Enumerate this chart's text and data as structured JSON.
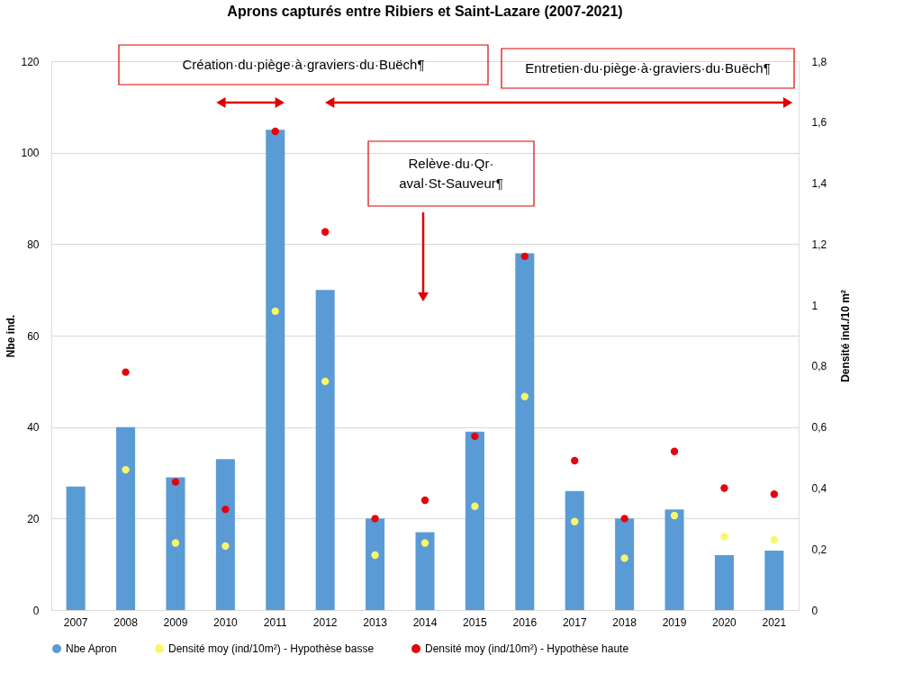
{
  "chart_data": {
    "type": "bar",
    "title": "Aprons capturés entre Ribiers et Saint-Lazare (2007-2021)",
    "ylabel": "Nbe ind.",
    "y2label": "Densité ind./10 m²",
    "categories": [
      "2007",
      "2008",
      "2009",
      "2010",
      "2011",
      "2012",
      "2013",
      "2014",
      "2015",
      "2016",
      "2017",
      "2018",
      "2019",
      "2020",
      "2021"
    ],
    "series": [
      {
        "name": "Nbe Apron",
        "color": "#5b9bd5",
        "values": [
          27,
          40,
          29,
          33,
          105,
          70,
          20,
          17,
          39,
          78,
          26,
          20,
          22,
          12,
          13
        ]
      },
      {
        "name": "Densité moy (ind/10m²) - Hypothèse basse",
        "color": "#f7f76a",
        "type": "scatter",
        "axis": "y2",
        "values": [
          null,
          0.46,
          0.22,
          0.21,
          0.98,
          0.75,
          0.18,
          0.22,
          0.34,
          0.7,
          0.29,
          0.17,
          0.31,
          0.24,
          0.23
        ]
      },
      {
        "name": "Densité moy (ind/10m²) - Hypothèse haute",
        "color": "#e8000e",
        "type": "scatter",
        "axis": "y2",
        "values": [
          null,
          0.78,
          0.42,
          0.33,
          1.57,
          1.24,
          0.3,
          0.36,
          0.57,
          1.16,
          0.49,
          0.3,
          0.52,
          0.4,
          0.38
        ]
      }
    ],
    "ylim": [
      0,
      120
    ],
    "yticks": [
      0,
      20,
      40,
      60,
      80,
      100,
      120
    ],
    "y2lim": [
      0,
      1.8
    ],
    "y2ticks": [
      0,
      {
        "value": 0.2,
        "label": "0,2"
      },
      {
        "value": 0.4,
        "label": "0,4"
      },
      {
        "value": 0.6,
        "label": "0,6"
      },
      {
        "value": 0.8,
        "label": "0,8"
      },
      1,
      {
        "value": 1.2,
        "label": "1,2"
      },
      {
        "value": 1.4,
        "label": "1,4"
      },
      {
        "value": 1.6,
        "label": "1,6"
      },
      {
        "value": 1.8,
        "label": "1,8"
      }
    ],
    "grid": "y",
    "legend": "bottom",
    "marker": "circle",
    "annotations": [
      "Création·du·piège·à·graviers·du·Buëch¶",
      "Entretien·du·piège·à·graviers·du·Buëch¶",
      "Relève·du·Qr·\naval·St-Sauveur¶"
    ]
  }
}
